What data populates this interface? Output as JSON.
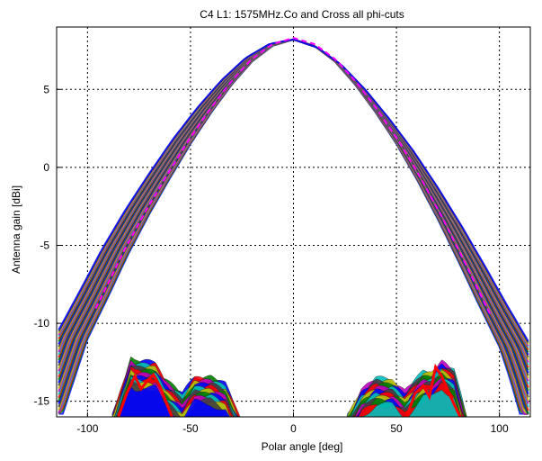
{
  "chart_data": {
    "type": "line",
    "title": "C4 L1: 1575MHz.Co and Cross all phi-cuts",
    "xlabel": "Polar angle [deg]",
    "ylabel": "Antenna gain  [dBi]",
    "xlim": [
      -115,
      115
    ],
    "ylim": [
      -16,
      9
    ],
    "xticks": [
      -100,
      -50,
      0,
      50,
      100
    ],
    "yticks": [
      5,
      0,
      -5,
      -10,
      -15
    ],
    "grid": true,
    "grid_style": "dotted",
    "colors": {
      "highlight_cut": "#ff0000",
      "dashed_cut": "#ff00ff",
      "palette": [
        "#0000ff",
        "#008000",
        "#ff0000",
        "#00bfbf",
        "#bf00bf",
        "#bfbf00",
        "#404040"
      ]
    },
    "series": [
      {
        "role": "co-polar main beam (envelope of phi-cuts)",
        "x": [
          -112,
          -105,
          -100,
          -90,
          -80,
          -70,
          -60,
          -50,
          -40,
          -30,
          -20,
          -10,
          0,
          10,
          20,
          30,
          40,
          50,
          60,
          70,
          80,
          90,
          100,
          105,
          110
        ],
        "y": [
          -15.8,
          -13,
          -11,
          -8.3,
          -5.5,
          -3.0,
          -0.7,
          1.5,
          3.5,
          5.3,
          6.8,
          7.8,
          8.2,
          7.8,
          6.8,
          5.3,
          3.5,
          1.5,
          -0.8,
          -3.3,
          -6.0,
          -8.8,
          -11.5,
          -13.5,
          -15.8
        ]
      },
      {
        "role": "cross-polar left lobe (red cut)",
        "x": [
          -85,
          -81,
          -77,
          -74,
          -71,
          -68,
          -65,
          -62,
          -59
        ],
        "y": [
          -16,
          -14.5,
          -13.4,
          -14.2,
          -13.7,
          -13.3,
          -14.0,
          -15.0,
          -16
        ]
      },
      {
        "role": "cross-polar right lobe (red cut)",
        "x": [
          55,
          59,
          63,
          66,
          69,
          72,
          75,
          78,
          81
        ],
        "y": [
          -16,
          -14.5,
          -14.0,
          -14.7,
          -12.8,
          -13.4,
          -14.3,
          -15.2,
          -16
        ]
      }
    ],
    "cross_lobes": [
      {
        "x": [
          -88,
          -79,
          -77,
          -67,
          -63,
          -54,
          -48,
          -40,
          -33,
          -26
        ],
        "y": [
          -16,
          -12.3,
          -12.5,
          -12.6,
          -13.5,
          -14.6,
          -13.5,
          -13.5,
          -14.0,
          -16
        ]
      },
      {
        "x": [
          26,
          33,
          40,
          48,
          54,
          63,
          67,
          72,
          78,
          84
        ],
        "y": [
          -16,
          -14.3,
          -13.6,
          -13.7,
          -14.4,
          -13.2,
          -13.2,
          -12.5,
          -13.1,
          -16
        ]
      }
    ]
  }
}
